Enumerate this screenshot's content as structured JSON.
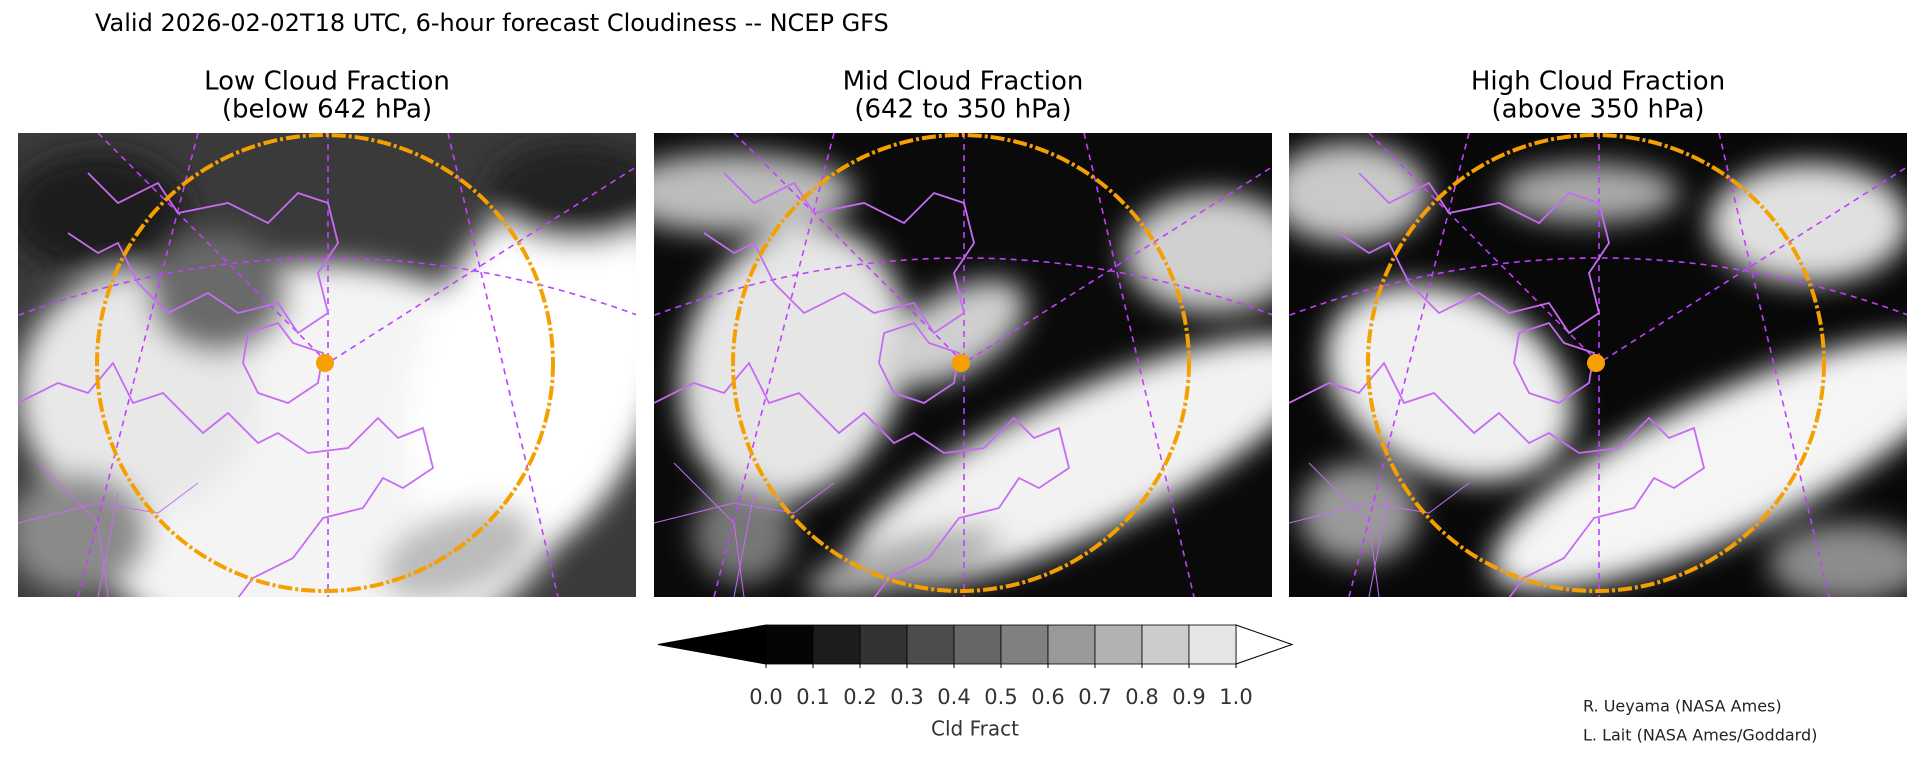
{
  "header": {
    "title": "Valid 2026-02-02T18 UTC, 6-hour forecast Cloudiness -- NCEP GFS"
  },
  "panels": [
    {
      "title_lines": [
        "Low Cloud Fraction",
        "(below 642 hPa)"
      ]
    },
    {
      "title_lines": [
        "Mid Cloud Fraction",
        "(642 to 350 hPa)"
      ]
    },
    {
      "title_lines": [
        "High Cloud Fraction",
        "(above 350 hPa)"
      ]
    }
  ],
  "colorbar": {
    "label": "Cld Fract",
    "ticks": [
      {
        "value": 0,
        "label": "0.0"
      },
      0.1,
      0.2,
      0.3,
      0.4,
      0.5,
      0.6,
      0.7,
      0.8,
      0.9,
      {
        "value": 1,
        "label": "1.0"
      }
    ],
    "colors": [
      "#050505",
      "#1c1c1c",
      "#333333",
      "#4c4c4c",
      "#666666",
      "#808080",
      "#999999",
      "#b2b2b2",
      "#cccccc",
      "#e5e5e5"
    ],
    "under_color": "#000000",
    "over_color": "#ffffff"
  },
  "credits": [
    "R. Ueyama (NASA Ames)",
    "L. Lait (NASA Ames/Goddard)"
  ]
}
